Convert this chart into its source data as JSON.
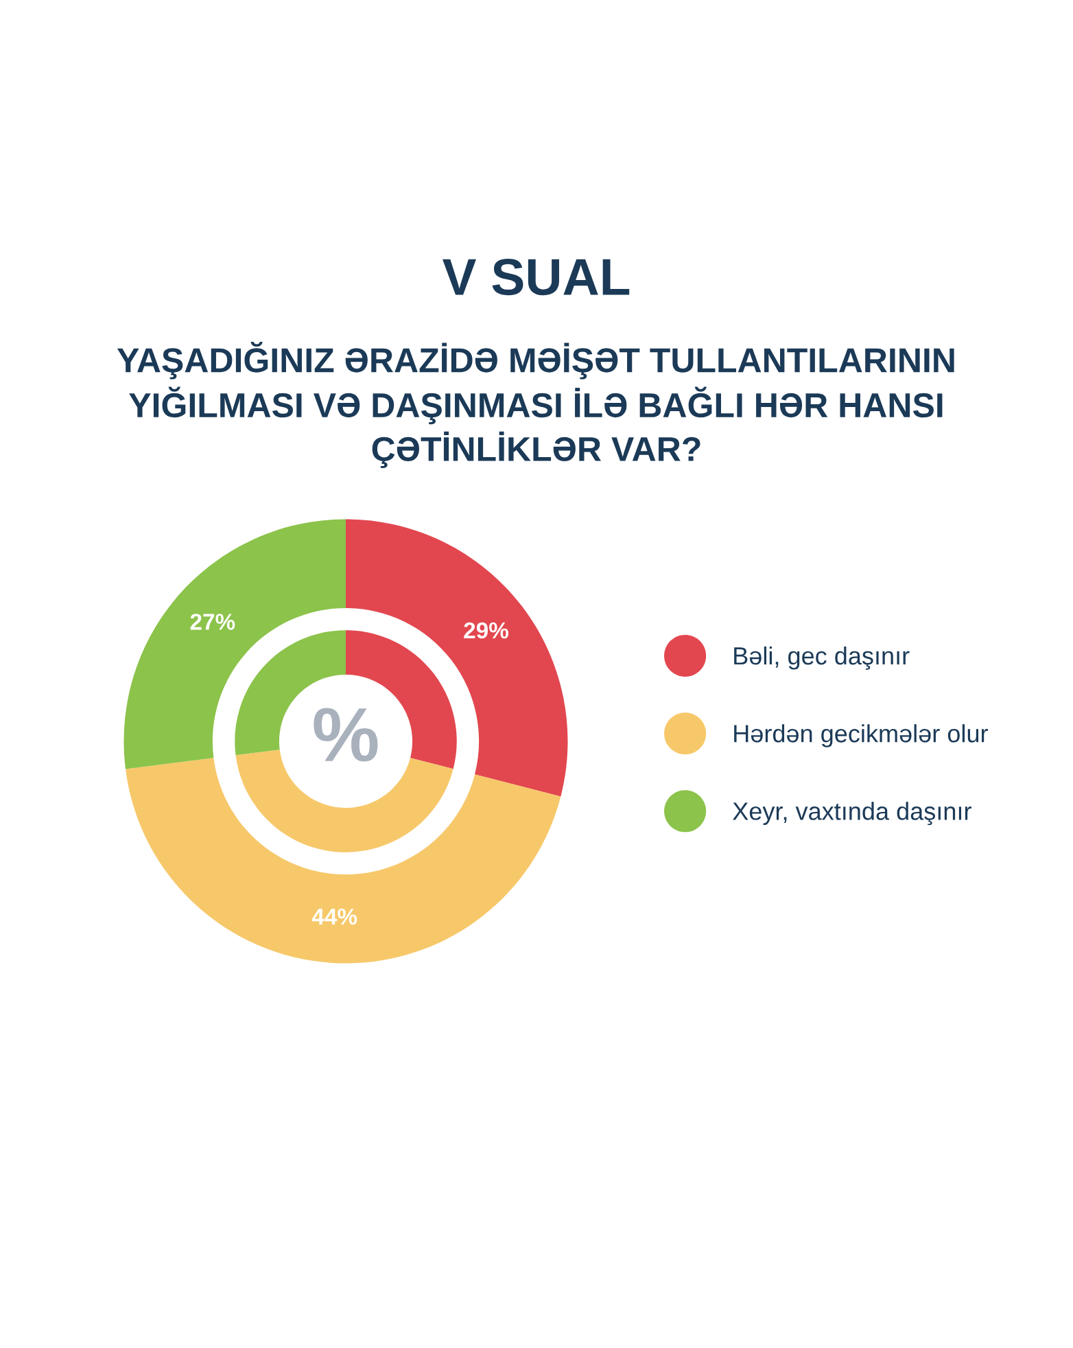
{
  "chart_data": {
    "type": "donut",
    "title": "V SUAL",
    "subtitle": "YAŞADIĞINIZ ƏRAZİDƏ MƏİŞƏT TULLANTILARININ\nYIĞILMASI VƏ DAŞINMASI İLƏ BAĞLI HƏR HANSI\nÇƏTİNLİKLƏR VAR?",
    "categories": [
      "Bəli, gec daşınır",
      "Hərdən gecikmələr olur",
      "Xeyr, vaxtında daşınır"
    ],
    "colors": [
      "#e2474f",
      "#f7c86a",
      "#8cc34b"
    ],
    "series": [
      {
        "values": [
          29,
          44,
          27
        ],
        "value_labels": [
          "29%",
          "44%",
          "27%"
        ]
      },
      {
        "values": [
          29,
          44,
          27
        ]
      }
    ],
    "annotations": [
      "%"
    ],
    "legend": "right"
  }
}
